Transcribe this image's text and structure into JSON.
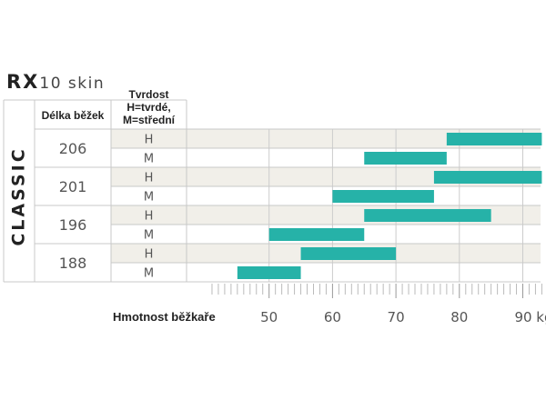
{
  "title": {
    "main": "RX",
    "sub": "10 skin"
  },
  "style_label": "CLASSIC",
  "headers": {
    "length": "Délka běžek",
    "stiffness_lines": [
      "Tvrdost",
      "H=tvrdé,",
      "M=střední"
    ]
  },
  "colors": {
    "bar": "#26b2a8",
    "band": "#f1efe9",
    "grid": "#cccccc"
  },
  "chart_data": {
    "type": "bar",
    "orientation": "horizontal-range",
    "xlabel": "Hmotnost běžkaře",
    "x_unit": "kg",
    "xlim": [
      40,
      93
    ],
    "xticks": [
      50,
      60,
      70,
      80,
      90
    ],
    "minor_tick_step": 1,
    "grid": true,
    "groups": [
      {
        "length": "206",
        "rows": [
          {
            "stiffness": "H",
            "range": [
              78,
              93
            ]
          },
          {
            "stiffness": "M",
            "range": [
              65,
              78
            ]
          }
        ]
      },
      {
        "length": "201",
        "rows": [
          {
            "stiffness": "H",
            "range": [
              76,
              93
            ]
          },
          {
            "stiffness": "M",
            "range": [
              60,
              76
            ]
          }
        ]
      },
      {
        "length": "196",
        "rows": [
          {
            "stiffness": "H",
            "range": [
              65,
              85
            ]
          },
          {
            "stiffness": "M",
            "range": [
              50,
              65
            ]
          }
        ]
      },
      {
        "length": "188",
        "rows": [
          {
            "stiffness": "H",
            "range": [
              55,
              70
            ]
          },
          {
            "stiffness": "M",
            "range": [
              45,
              55
            ]
          }
        ]
      }
    ]
  }
}
